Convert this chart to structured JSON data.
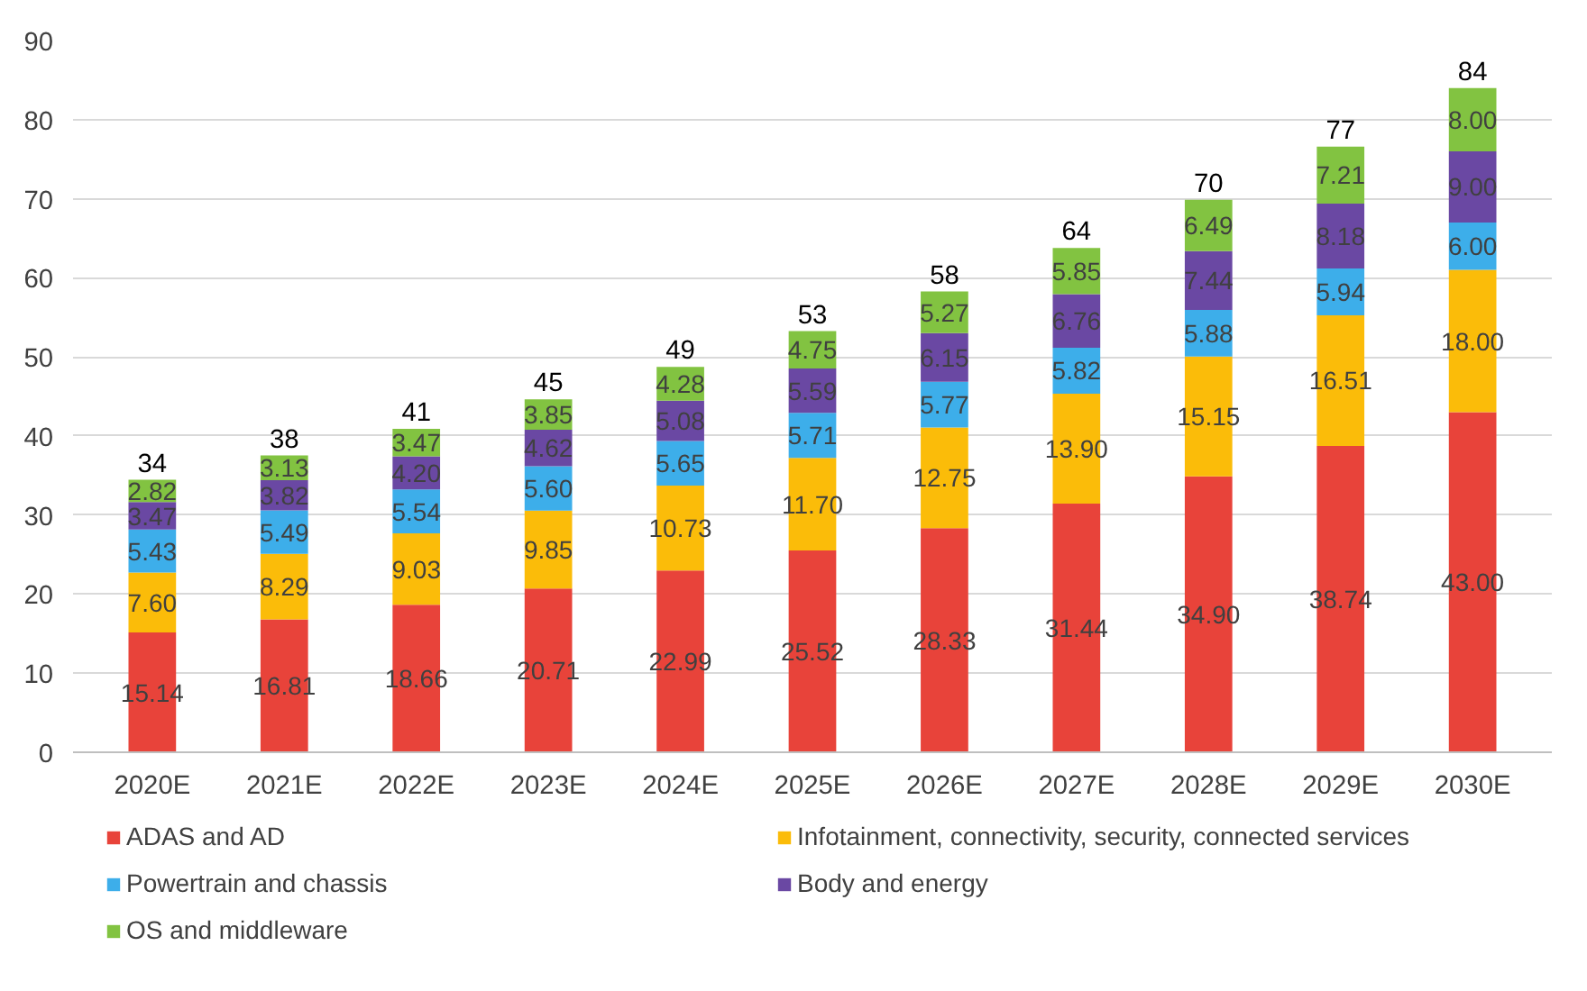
{
  "chart_data": {
    "type": "bar",
    "stacked": true,
    "categories": [
      "2020E",
      "2021E",
      "2022E",
      "2023E",
      "2024E",
      "2025E",
      "2026E",
      "2027E",
      "2028E",
      "2029E",
      "2030E"
    ],
    "series": [
      {
        "name": "ADAS and AD",
        "color": "#e8433a",
        "values": [
          15.14,
          16.81,
          18.66,
          20.71,
          22.99,
          25.52,
          28.33,
          31.44,
          34.9,
          38.74,
          43.0
        ]
      },
      {
        "name": "Infotainment, connectivity, security, connected services",
        "color": "#fbbc09",
        "values": [
          7.6,
          8.29,
          9.03,
          9.85,
          10.73,
          11.7,
          12.75,
          13.9,
          15.15,
          16.51,
          18.0
        ]
      },
      {
        "name": "Powertrain and chassis",
        "color": "#3daeea",
        "values": [
          5.43,
          5.49,
          5.54,
          5.6,
          5.65,
          5.71,
          5.77,
          5.82,
          5.88,
          5.94,
          6.0
        ]
      },
      {
        "name": "Body and energy",
        "color": "#6a48a3",
        "values": [
          3.47,
          3.82,
          4.2,
          4.62,
          5.08,
          5.59,
          6.15,
          6.76,
          7.44,
          8.18,
          9.0
        ]
      },
      {
        "name": "OS and middleware",
        "color": "#82c341",
        "values": [
          2.82,
          3.13,
          3.47,
          3.85,
          4.28,
          4.75,
          5.27,
          5.85,
          6.49,
          7.21,
          8.0
        ]
      }
    ],
    "value_labels": [
      [
        "15.14",
        "16.81",
        "18.66",
        "20.71",
        "22.99",
        "25.52",
        "28.33",
        "31.44",
        "34.90",
        "38.74",
        "43.00"
      ],
      [
        "7.60",
        "8.29",
        "9.03",
        "9.85",
        "10.73",
        "11.70",
        "12.75",
        "13.90",
        "15.15",
        "16.51",
        "18.00"
      ],
      [
        "5.43",
        "5.49",
        "5.54",
        "5.60",
        "5.65",
        "5.71",
        "5.77",
        "5.82",
        "5.88",
        "5.94",
        "6.00"
      ],
      [
        "3.47",
        "3.82",
        "4.20",
        "4.62",
        "5.08",
        "5.59",
        "6.15",
        "6.76",
        "7.44",
        "8.18",
        "9.00"
      ],
      [
        "2.82",
        "3.13",
        "3.47",
        "3.85",
        "4.28",
        "4.75",
        "5.27",
        "5.85",
        "6.49",
        "7.21",
        "8.00"
      ]
    ],
    "totals": [
      "34",
      "38",
      "41",
      "45",
      "49",
      "53",
      "58",
      "64",
      "70",
      "77",
      "84"
    ],
    "ylim": [
      0,
      90
    ],
    "yticks": [
      0,
      10,
      20,
      30,
      40,
      50,
      60,
      70,
      80,
      90
    ],
    "grid": "y",
    "legend": "bottom"
  }
}
